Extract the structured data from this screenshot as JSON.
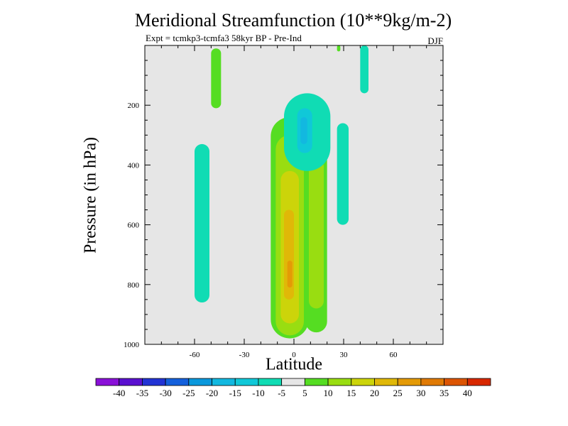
{
  "chart_data": {
    "type": "contour",
    "title": "Meridional Streamfunction (10**9kg/m-2)",
    "subtitle": "Expt = tcmkp3-tcmfa3     58kyr BP - Pre-Ind",
    "season": "DJF",
    "xlabel": "Latitude",
    "ylabel": "Pressure (in hPa)",
    "xlim": [
      -90,
      90
    ],
    "ylim": [
      0,
      1000
    ],
    "x_ticks": [
      -60,
      -30,
      0,
      30,
      60
    ],
    "x_tick_labels": [
      "-60",
      "-30",
      "0",
      "30",
      "60"
    ],
    "y_ticks": [
      200,
      400,
      600,
      800,
      1000
    ],
    "y_tick_labels": [
      "200",
      "400",
      "600",
      "800",
      "1000"
    ],
    "colorbar": {
      "levels": [
        -40,
        -35,
        -30,
        -25,
        -20,
        -15,
        -10,
        -5,
        5,
        10,
        15,
        20,
        25,
        30,
        35,
        40
      ],
      "labels": [
        "-40",
        "-35",
        "-30",
        "-25",
        "-20",
        "-15",
        "-10",
        "-5",
        "5",
        "10",
        "15",
        "20",
        "25",
        "30",
        "35",
        "40"
      ],
      "colors": [
        "#8a10d8",
        "#5a10d0",
        "#2233d4",
        "#1460dc",
        "#0a98dc",
        "#12b8e0",
        "#10c8d8",
        "#10dcb4",
        "#e6e6e6",
        "#55dd22",
        "#99dd11",
        "#ccd40a",
        "#e0b808",
        "#e49a06",
        "#e07a04",
        "#dc5402",
        "#d82800"
      ]
    },
    "background_color": "#e6e6e6",
    "regions": [
      {
        "id": "pos-upper-lat-48",
        "value": 10,
        "color": "#55dd22",
        "lat": [
          -50,
          -44
        ],
        "p": [
          10,
          210
        ]
      },
      {
        "id": "neg-band-lat-56",
        "value": -10,
        "color": "#10dcb4",
        "lat": [
          -60,
          -51
        ],
        "p": [
          330,
          860
        ]
      },
      {
        "id": "pos-main-cell",
        "value": 10,
        "color": "#55dd22",
        "lat": [
          -14,
          9
        ],
        "p": [
          240,
          980
        ]
      },
      {
        "id": "pos-main-cell-15",
        "value": 15,
        "color": "#99dd11",
        "lat": [
          -11,
          6
        ],
        "p": [
          300,
          970
        ]
      },
      {
        "id": "pos-main-cell-20",
        "value": 20,
        "color": "#ccd40a",
        "lat": [
          -8,
          3
        ],
        "p": [
          420,
          930
        ]
      },
      {
        "id": "pos-main-cell-25",
        "value": 25,
        "color": "#e0b808",
        "lat": [
          -6,
          0
        ],
        "p": [
          550,
          850
        ]
      },
      {
        "id": "pos-main-cell-30",
        "value": 30,
        "color": "#e49a06",
        "lat": [
          -4,
          -1
        ],
        "p": [
          720,
          810
        ]
      },
      {
        "id": "pos-right-cell",
        "value": 10,
        "color": "#55dd22",
        "lat": [
          7,
          20
        ],
        "p": [
          330,
          960
        ]
      },
      {
        "id": "pos-right-cell-15",
        "value": 15,
        "color": "#99dd11",
        "lat": [
          9,
          18
        ],
        "p": [
          380,
          880
        ]
      },
      {
        "id": "neg-upper-blob",
        "value": -10,
        "color": "#10dcb4",
        "lat": [
          -6,
          22
        ],
        "p": [
          160,
          420
        ]
      },
      {
        "id": "neg-upper-blob-15",
        "value": -15,
        "color": "#10c8d8",
        "lat": [
          2,
          11
        ],
        "p": [
          210,
          360
        ]
      },
      {
        "id": "neg-upper-core-20",
        "value": -20,
        "color": "#12b8e0",
        "lat": [
          4,
          8
        ],
        "p": [
          240,
          330
        ]
      },
      {
        "id": "neg-patch-lat-32",
        "value": -10,
        "color": "#10dcb4",
        "lat": [
          26,
          33
        ],
        "p": [
          260,
          600
        ]
      },
      {
        "id": "neg-strip-lat-42",
        "value": -10,
        "color": "#10dcb4",
        "lat": [
          40,
          45
        ],
        "p": [
          0,
          160
        ]
      },
      {
        "id": "pos-sliver-lat-27",
        "value": 10,
        "color": "#55dd22",
        "lat": [
          26,
          28
        ],
        "p": [
          0,
          20
        ]
      }
    ]
  }
}
